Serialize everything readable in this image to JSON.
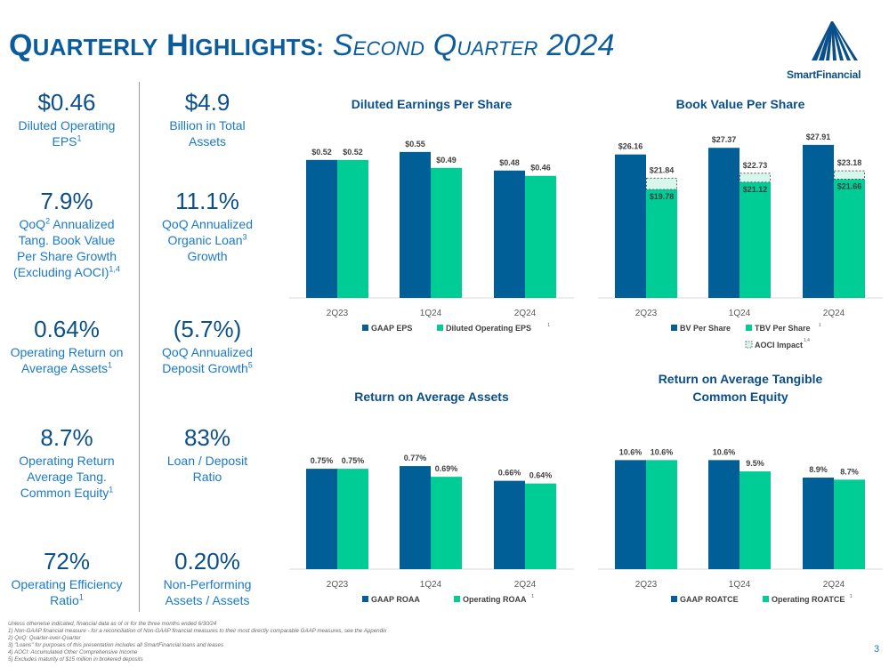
{
  "header": {
    "title_first": "Q",
    "title_first_rest": "UARTERLY",
    "title_second": "H",
    "title_second_rest": "IGHLIGHTS:",
    "sub_1": "S",
    "sub_1_rest": "ECOND",
    "sub_2": "Q",
    "sub_2_rest": "UARTER",
    "sub_year": "2024",
    "logo_text": "SmartFinancial"
  },
  "kpis": [
    {
      "value": "$0.46",
      "desc": "Diluted Operating EPS",
      "sup": "1"
    },
    {
      "value": "$4.9",
      "desc": "Billion in Total Assets",
      "sup": ""
    },
    {
      "value": "7.9%",
      "desc_a": "QoQ",
      "sup_a": "2",
      "desc_b": " Annualized Tang. Book Value Per Share Growth (Excluding AOCI)",
      "sup": "1,4"
    },
    {
      "value": "11.1%",
      "desc": "QoQ Annualized Organic Loan",
      "sup": "3",
      "desc_tail": " Growth"
    },
    {
      "value": "0.64%",
      "desc": "Operating Return on Average Assets",
      "sup": "1"
    },
    {
      "value": "(5.7%)",
      "desc": "QoQ Annualized Deposit Growth",
      "sup": "5"
    },
    {
      "value": "8.7%",
      "desc": "Operating Return Average Tang. Common Equity",
      "sup": "1"
    },
    {
      "value": "83%",
      "desc": "Loan / Deposit Ratio",
      "sup": ""
    },
    {
      "value": "72%",
      "desc": "Operating Efficiency Ratio",
      "sup": "1"
    },
    {
      "value": "0.20%",
      "desc": "Non-Performing Assets / Assets",
      "sup": ""
    }
  ],
  "colors": {
    "dark": "#005f96",
    "green": "#00cc96",
    "text": "#0b4f8a",
    "accent": "#1a7ac7"
  },
  "chart_data": [
    {
      "type": "bar",
      "title": "Diluted Earnings Per Share",
      "categories": [
        "2Q23",
        "1Q24",
        "2Q24"
      ],
      "ylim": [
        0,
        0.62
      ],
      "series": [
        {
          "name": "GAAP EPS",
          "values": [
            0.52,
            0.55,
            0.48
          ],
          "labels": [
            "$0.52",
            "$0.55",
            "$0.48"
          ]
        },
        {
          "name": "Diluted Operating EPS",
          "values": [
            0.52,
            0.49,
            0.46
          ],
          "labels": [
            "$0.52",
            "$0.49",
            "$0.46"
          ],
          "sup": "1"
        }
      ]
    },
    {
      "type": "bar",
      "title": "Book Value Per Share",
      "categories": [
        "2Q23",
        "1Q24",
        "2Q24"
      ],
      "ylim": [
        0,
        30
      ],
      "series": [
        {
          "name": "BV Per Share",
          "values": [
            26.16,
            27.37,
            27.91
          ],
          "labels": [
            "$26.16",
            "$27.37",
            "$27.91"
          ]
        },
        {
          "name": "TBV Per Share",
          "values": [
            19.78,
            21.12,
            21.66
          ],
          "labels": [
            "$19.78",
            "$21.12",
            "$21.66"
          ],
          "sup": "1"
        },
        {
          "name": "AOCI Impact",
          "values": [
            21.84,
            22.73,
            23.18
          ],
          "labels": [
            "$21.84",
            "$22.73",
            "$23.18"
          ],
          "sup": "1,4"
        }
      ]
    },
    {
      "type": "bar",
      "title": "Return on Average Assets",
      "categories": [
        "2Q23",
        "1Q24",
        "2Q24"
      ],
      "ylim": [
        0,
        0.93
      ],
      "series": [
        {
          "name": "GAAP ROAA",
          "values": [
            0.75,
            0.77,
            0.66
          ],
          "labels": [
            "0.75%",
            "0.77%",
            "0.66%"
          ]
        },
        {
          "name": "Operating ROAA",
          "values": [
            0.75,
            0.69,
            0.64
          ],
          "labels": [
            "0.75%",
            "0.69%",
            "0.64%"
          ],
          "sup": "1"
        }
      ]
    },
    {
      "type": "bar",
      "title": "Return on Average Tangible Common Equity",
      "title_lines": [
        "Return on Average Tangible",
        "Common Equity"
      ],
      "categories": [
        "2Q23",
        "1Q24",
        "2Q24"
      ],
      "ylim": [
        0,
        12.1
      ],
      "series": [
        {
          "name": "GAAP ROATCE",
          "values": [
            10.6,
            10.6,
            8.9
          ],
          "labels": [
            "10.6%",
            "10.6%",
            "8.9%"
          ]
        },
        {
          "name": "Operating ROATCE",
          "values": [
            10.6,
            9.5,
            8.7
          ],
          "labels": [
            "10.6%",
            "9.5%",
            "8.7%"
          ],
          "sup": "1"
        }
      ]
    }
  ],
  "footnotes": [
    "Unless otherwise indicated, financial data as of or for the three months ended 6/30/24",
    "1)    Non-GAAP financial measure - for a reconciliation of Non-GAAP financial measures to their most directly comparable GAAP measures, see the Appendix",
    "2)    QoQ: Quarter-over-Quarter",
    "3)    \"Loans\" for purposes of this presentation includes all SmartFinancial loans and leases",
    "4)    AOCI: Accumulated Other Comprehensive Income",
    "5)    Excludes maturity of $15 million in brokered deposits"
  ],
  "page_number": "3"
}
